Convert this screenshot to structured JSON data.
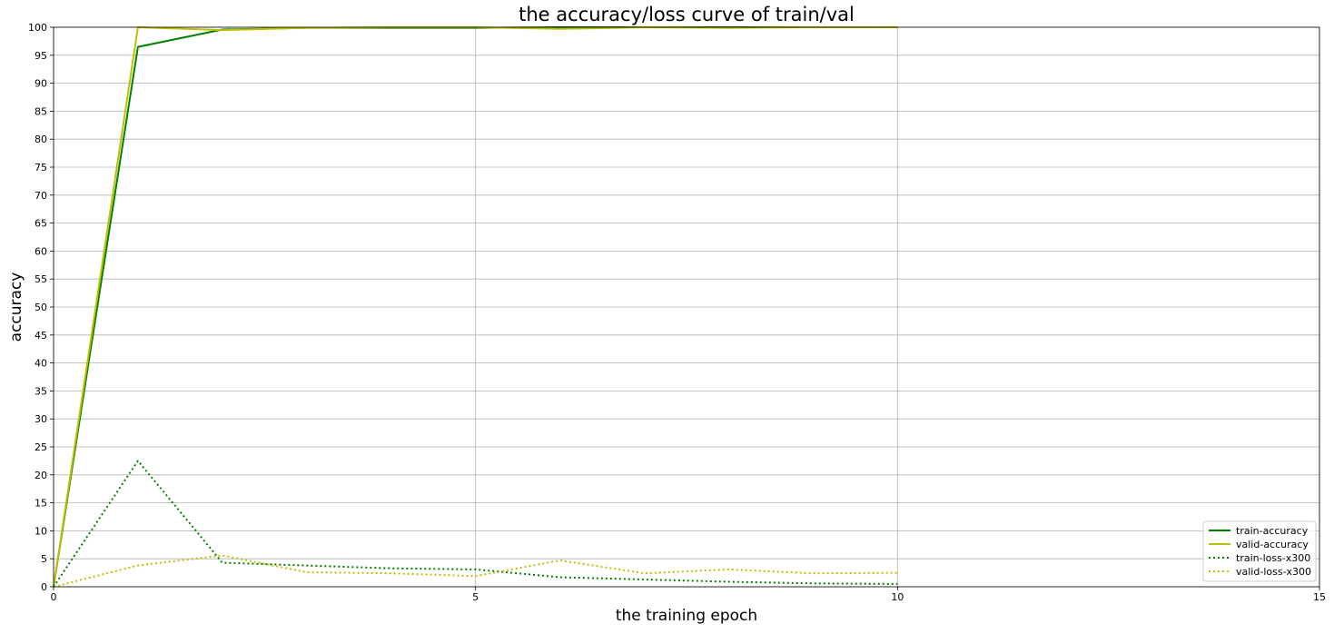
{
  "chart_data": {
    "type": "line",
    "title": "the accuracy/loss curve of train/val",
    "xlabel": "the training epoch",
    "ylabel": "accuracy",
    "xlim": [
      0,
      15
    ],
    "ylim": [
      0,
      100
    ],
    "xticks": [
      0,
      5,
      10,
      15
    ],
    "yticks": [
      0,
      5,
      10,
      15,
      20,
      25,
      30,
      35,
      40,
      45,
      50,
      55,
      60,
      65,
      70,
      75,
      80,
      85,
      90,
      95,
      100
    ],
    "grid": true,
    "legend_position": "lower right",
    "series": [
      {
        "name": "train-accuracy",
        "color": "#008000",
        "style": "solid",
        "x": [
          0,
          1,
          2,
          3,
          4,
          5,
          6,
          7,
          8,
          9,
          10
        ],
        "y": [
          0,
          96.5,
          99.6,
          99.9,
          99.9,
          99.9,
          100,
          100,
          100,
          100,
          100
        ]
      },
      {
        "name": "valid-accuracy",
        "color": "#bfbf00",
        "style": "solid",
        "x": [
          0,
          1,
          2,
          3,
          4,
          5,
          6,
          7,
          8,
          9,
          10
        ],
        "y": [
          0,
          100,
          99.5,
          99.9,
          100,
          100,
          99.7,
          100,
          99.9,
          100,
          100
        ]
      },
      {
        "name": "train-loss-x300",
        "color": "#008000",
        "style": "dotted",
        "x": [
          0,
          1,
          2,
          3,
          4,
          5,
          6,
          7,
          8,
          9,
          10
        ],
        "y": [
          0,
          22.5,
          4.3,
          3.8,
          3.3,
          3.1,
          1.7,
          1.3,
          0.9,
          0.6,
          0.5
        ]
      },
      {
        "name": "valid-loss-x300",
        "color": "#bfbf00",
        "style": "dotted",
        "x": [
          0,
          1,
          2,
          3,
          4,
          5,
          6,
          7,
          8,
          9,
          10
        ],
        "y": [
          0,
          3.8,
          5.6,
          2.6,
          2.4,
          1.9,
          4.7,
          2.4,
          3.1,
          2.4,
          2.5
        ]
      }
    ]
  }
}
